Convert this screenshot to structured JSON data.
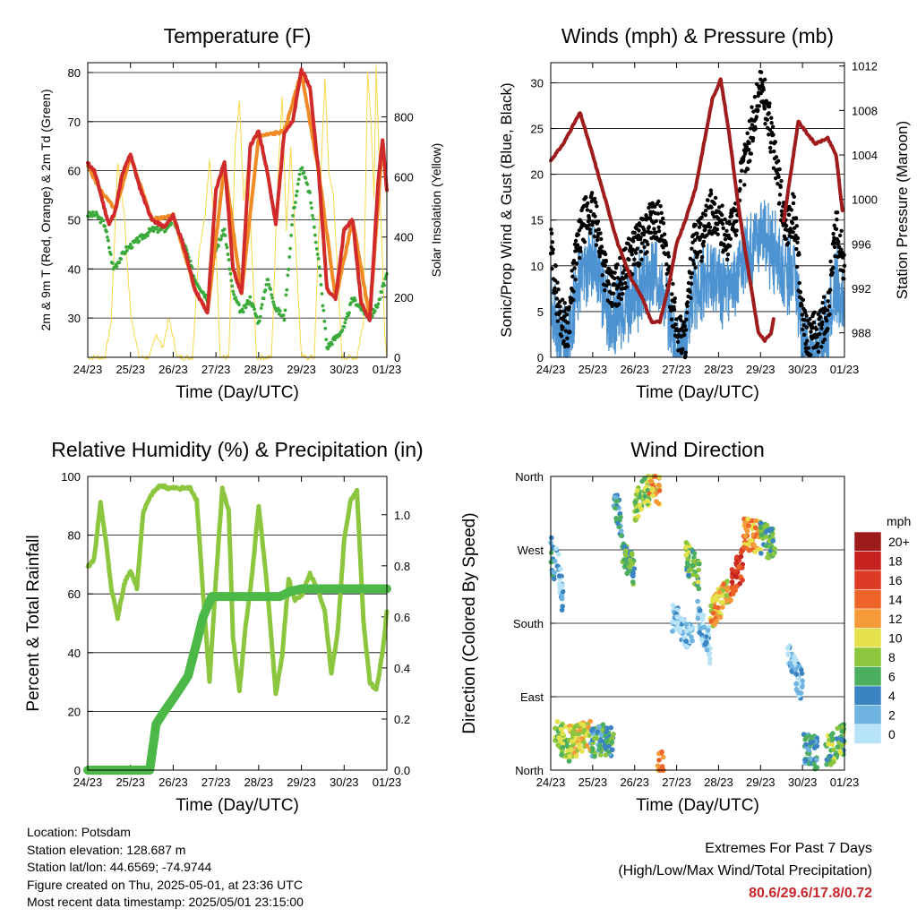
{
  "station": {
    "location": "Location: Potsdam",
    "elevation": "Station elevation: 128.687 m",
    "latlon": "Station lat/lon: 44.6569; -74.9744",
    "created": "Figure created on Thu, 2025-05-01, at 23:36 UTC",
    "recent": "Most recent data timestamp: 2025/05/01 23:15:00"
  },
  "extremes": {
    "title": "Extremes For Past 7 Days",
    "subtitle": "(High/Low/Max Wind/Total Precipitation)",
    "values": "80.6/29.6/17.8/0.72"
  },
  "colors": {
    "temp": "#d02a2a",
    "temp9m": "#f08a24",
    "dewpoint": "#3aaa3a",
    "solar": "#f5d94a",
    "wind": "#4d93d1",
    "gust": "#000000",
    "pressure": "#a01c1c",
    "rh": "#8cc63f",
    "precip": "#4cb847"
  },
  "chart_data": [
    {
      "type": "line",
      "title": "Temperature (F)",
      "xlabel": "Time (Day/UTC)",
      "ylabel": "2m & 9m T (Red, Orange) & 2m Td (Green)",
      "ylabel_right": "Solar Insolation (Yellow)",
      "x_ticks": [
        "24/23",
        "25/23",
        "26/23",
        "27/23",
        "28/23",
        "29/23",
        "30/23",
        "01/23"
      ],
      "xlim": [
        0,
        7
      ],
      "ylim": [
        22,
        82
      ],
      "y_ticks": [
        30,
        40,
        50,
        60,
        70,
        80
      ],
      "ylim_right": [
        0,
        980
      ],
      "y_ticks_right": [
        0,
        200,
        400,
        600,
        800
      ],
      "grid": "horizontal",
      "series": [
        {
          "name": "2m T",
          "x": [
            0,
            0.15,
            0.25,
            0.4,
            0.5,
            0.65,
            0.8,
            1.0,
            1.2,
            1.5,
            1.8,
            2.0,
            2.3,
            2.5,
            2.8,
            3.0,
            3.2,
            3.4,
            3.6,
            3.8,
            4.0,
            4.2,
            4.4,
            4.6,
            4.8,
            5.0,
            5.2,
            5.4,
            5.6,
            5.8,
            6.0,
            6.2,
            6.4,
            6.6,
            6.8,
            6.9,
            7.0
          ],
          "values": [
            61.5,
            60,
            57,
            52,
            49,
            52,
            59,
            63.5,
            57,
            50,
            48.5,
            51,
            43,
            36,
            31,
            56,
            62,
            40,
            35,
            65,
            68,
            60,
            49,
            68,
            70,
            80.6,
            77,
            60,
            36,
            34,
            48,
            50,
            33,
            29.6,
            58,
            66.5,
            56
          ]
        },
        {
          "name": "9m T",
          "x": [
            0,
            0.3,
            0.65,
            1.0,
            1.5,
            2.0,
            2.5,
            2.8,
            3.2,
            3.6,
            4.0,
            4.6,
            5.0,
            5.4,
            5.8,
            6.2,
            6.6,
            6.9,
            7.0
          ],
          "values": [
            61,
            56,
            52,
            63,
            50,
            51,
            36,
            31,
            61,
            35,
            67,
            68,
            80,
            60,
            34,
            50,
            30,
            66,
            56
          ]
        },
        {
          "name": "2m Td",
          "x": [
            0,
            0.2,
            0.4,
            0.6,
            0.9,
            1.2,
            1.5,
            1.8,
            2.0,
            2.3,
            2.5,
            2.8,
            3.0,
            3.2,
            3.4,
            3.6,
            3.8,
            4.0,
            4.2,
            4.4,
            4.6,
            4.8,
            5.0,
            5.2,
            5.4,
            5.6,
            5.8,
            6.0,
            6.2,
            6.4,
            6.6,
            6.8,
            7.0
          ],
          "values": [
            51,
            51,
            49,
            40,
            44,
            46,
            48,
            48,
            50,
            44,
            38,
            34,
            44,
            48,
            35,
            31,
            34,
            29,
            38,
            32,
            30,
            51,
            61,
            55,
            42,
            24,
            26,
            28,
            34,
            32,
            30,
            33,
            39
          ]
        },
        {
          "name": "Solar Insolation",
          "x": [
            0,
            0.4,
            0.55,
            0.7,
            0.85,
            1.0,
            1.2,
            1.45,
            1.6,
            1.75,
            1.9,
            2.1,
            2.45,
            2.6,
            2.75,
            2.85,
            3.0,
            3.1,
            3.3,
            3.45,
            3.55,
            3.65,
            3.75,
            3.95,
            4.3,
            4.45,
            4.55,
            4.65,
            4.75,
            5.0,
            5.3,
            5.45,
            5.55,
            5.65,
            5.75,
            5.95,
            6.3,
            6.45,
            6.55,
            6.62,
            6.7,
            6.75,
            6.95,
            7.0
          ],
          "values": [
            0,
            0,
            120,
            650,
            480,
            150,
            0,
            0,
            80,
            30,
            130,
            0,
            0,
            350,
            480,
            650,
            380,
            0,
            0,
            700,
            850,
            520,
            640,
            0,
            0,
            600,
            870,
            420,
            700,
            0,
            0,
            580,
            930,
            600,
            540,
            0,
            0,
            120,
            960,
            800,
            540,
            960,
            80,
            0
          ]
        }
      ]
    },
    {
      "type": "scatter",
      "title": "Winds (mph) & Pressure (mb)",
      "xlabel": "Time (Day/UTC)",
      "ylabel": "Sonic/Prop Wind & Gust (Blue, Black)",
      "ylabel_right": "Station Pressure (Maroon)",
      "x_ticks": [
        "24/23",
        "25/23",
        "26/23",
        "27/23",
        "28/23",
        "29/23",
        "30/23",
        "01/23"
      ],
      "xlim": [
        0,
        7
      ],
      "ylim": [
        0,
        32.2
      ],
      "y_ticks": [
        0,
        5,
        10,
        15,
        20,
        25,
        30
      ],
      "ylim_right": [
        985.8,
        1012.3
      ],
      "y_ticks_right": [
        988,
        992,
        996,
        1000,
        1004,
        1008,
        1012
      ],
      "grid": "horizontal",
      "series": [
        {
          "name": "Wind",
          "x": [
            0,
            0.2,
            0.4,
            0.6,
            0.8,
            1.0,
            1.2,
            1.4,
            1.6,
            1.8,
            2.0,
            2.2,
            2.4,
            2.6,
            2.8,
            3.0,
            3.2,
            3.4,
            3.6,
            3.8,
            4.0,
            4.2,
            4.4,
            4.6,
            4.8,
            5.0,
            5.2,
            5.4,
            5.6,
            5.8,
            6.0,
            6.2,
            6.4,
            6.6,
            6.8,
            7.0
          ],
          "values": [
            6,
            2,
            1,
            7,
            10,
            11,
            8,
            4,
            5,
            6,
            7,
            8,
            9,
            9,
            5,
            1,
            1,
            7,
            8,
            9,
            8,
            7,
            8,
            11,
            12,
            14,
            12,
            11,
            9,
            10,
            2,
            1,
            2,
            3,
            8,
            5
          ]
        },
        {
          "name": "Gust",
          "x": [
            0,
            0.2,
            0.4,
            0.6,
            0.8,
            1.0,
            1.2,
            1.4,
            1.6,
            1.8,
            2.0,
            2.2,
            2.4,
            2.6,
            2.8,
            3.0,
            3.2,
            3.4,
            3.6,
            3.8,
            4.0,
            4.2,
            4.4,
            4.6,
            4.8,
            5.0,
            5.2,
            5.4,
            5.6,
            5.8,
            6.0,
            6.2,
            6.4,
            6.6,
            6.8,
            7.0
          ],
          "values": [
            12,
            5,
            3,
            11,
            15,
            16,
            12,
            7,
            8,
            10,
            12,
            13,
            15,
            15,
            9,
            3,
            2,
            12,
            13,
            16,
            15,
            13,
            15,
            21,
            25,
            30,
            26,
            20,
            14,
            16,
            4,
            2,
            3,
            5,
            14,
            10
          ]
        },
        {
          "name": "Station Pressure",
          "x": [
            0,
            0.3,
            0.55,
            0.7,
            1.0,
            1.3,
            1.6,
            1.9,
            2.2,
            2.4,
            2.6,
            2.8,
            3.0,
            3.2,
            3.45,
            3.65,
            3.85,
            4.05,
            4.25,
            4.45,
            4.65,
            4.8,
            4.95,
            5.1,
            5.25,
            5.35,
            5.55,
            5.9,
            6.3,
            6.6,
            6.8,
            6.95
          ],
          "values": [
            1003.5,
            1005,
            1006.8,
            1007.8,
            1004,
            1000,
            996,
            993,
            991,
            989,
            989,
            992,
            996,
            998,
            1001,
            1005,
            1009,
            1010.8,
            1006,
            1000,
            995,
            991.5,
            988,
            987.3,
            988,
            990,
            998,
            1007,
            1005,
            1005.5,
            1004,
            999
          ]
        }
      ]
    },
    {
      "type": "line",
      "title": "Relative Humidity (%) & Precipitation (in)",
      "xlabel": "Time (Day/UTC)",
      "ylabel": "Percent & Total Rainfall",
      "x_ticks": [
        "24/23",
        "25/23",
        "26/23",
        "27/23",
        "28/23",
        "29/23",
        "30/23",
        "01/23"
      ],
      "xlim": [
        0,
        7
      ],
      "ylim": [
        0,
        100
      ],
      "y_ticks": [
        0,
        20,
        40,
        60,
        80,
        100
      ],
      "ylim_right": [
        0,
        1.15
      ],
      "y_ticks_right": [
        0.0,
        0.2,
        0.4,
        0.6,
        0.8,
        1.0
      ],
      "grid": "horizontal",
      "series": [
        {
          "name": "Relative Humidity",
          "x": [
            0,
            0.15,
            0.3,
            0.45,
            0.55,
            0.7,
            0.85,
            1.0,
            1.15,
            1.3,
            1.5,
            1.7,
            1.9,
            2.0,
            2.2,
            2.4,
            2.55,
            2.7,
            2.85,
            3.0,
            3.15,
            3.3,
            3.4,
            3.55,
            3.7,
            3.85,
            4.0,
            4.2,
            4.4,
            4.55,
            4.7,
            4.85,
            5.0,
            5.2,
            5.4,
            5.55,
            5.7,
            5.85,
            6.0,
            6.15,
            6.3,
            6.45,
            6.6,
            6.75,
            6.9,
            7.0
          ],
          "values": [
            69,
            72,
            91,
            75,
            62,
            52,
            63,
            68,
            62,
            88,
            94,
            97,
            96,
            96,
            96,
            96,
            92,
            60,
            30,
            65,
            96,
            88,
            45,
            27,
            50,
            67,
            90,
            62,
            26,
            39,
            65,
            58,
            59,
            67,
            61,
            54,
            33,
            47,
            78,
            92,
            95,
            51,
            30,
            27,
            40,
            54
          ]
        },
        {
          "name": "Precipitation",
          "x": [
            0,
            1.45,
            1.55,
            1.6,
            1.75,
            2.0,
            2.2,
            2.35,
            2.55,
            2.7,
            2.9,
            4.5,
            4.75,
            5.0,
            7.0
          ],
          "values": [
            0,
            0,
            0.12,
            0.18,
            0.22,
            0.28,
            0.33,
            0.37,
            0.5,
            0.6,
            0.68,
            0.68,
            0.7,
            0.71,
            0.71
          ]
        }
      ]
    },
    {
      "type": "scatter",
      "title": "Wind Direction",
      "xlabel": "Time (Day/UTC)",
      "ylabel": "Direction (Colored By Speed)",
      "x_ticks": [
        "24/23",
        "25/23",
        "26/23",
        "27/23",
        "28/23",
        "29/23",
        "30/23",
        "01/23"
      ],
      "xlim": [
        0,
        7
      ],
      "ylim": [
        0,
        360
      ],
      "y_tick_labels": [
        "North",
        "East",
        "South",
        "West",
        "North"
      ],
      "y_tick_values": [
        0,
        90,
        180,
        270,
        360
      ],
      "grid": "horizontal",
      "legend_title": "mph",
      "legend_labels": [
        "20+",
        "18",
        "16",
        "14",
        "12",
        "10",
        "8",
        "6",
        "4",
        "2",
        "0"
      ],
      "legend_colors": [
        "#9e1b1b",
        "#c5221f",
        "#dd3b26",
        "#ee6428",
        "#f59a38",
        "#e4e14c",
        "#8cc63f",
        "#4caf60",
        "#3a84c2",
        "#6fb3e0",
        "#b7e3f7"
      ],
      "clusters": [
        {
          "x0": 0.0,
          "x1": 0.12,
          "dir0": 270,
          "dir1": 240,
          "speed": 4
        },
        {
          "x0": 0.12,
          "x1": 0.3,
          "dir0": 280,
          "dir1": 200,
          "speed": 2
        },
        {
          "x0": 0.1,
          "x1": 0.45,
          "dir0": 45,
          "dir1": 30,
          "speed": 8
        },
        {
          "x0": 0.45,
          "x1": 0.95,
          "dir0": 35,
          "dir1": 40,
          "speed": 10
        },
        {
          "x0": 0.95,
          "x1": 1.5,
          "dir0": 35,
          "dir1": 38,
          "speed": 5
        },
        {
          "x0": 1.5,
          "x1": 1.7,
          "dir0": 338,
          "dir1": 300,
          "speed": 4
        },
        {
          "x0": 1.7,
          "x1": 2.0,
          "dir0": 270,
          "dir1": 240,
          "speed": 6
        },
        {
          "x0": 2.0,
          "x1": 2.35,
          "dir0": 325,
          "dir1": 345,
          "speed": 8
        },
        {
          "x0": 2.35,
          "x1": 2.6,
          "dir0": 352,
          "dir1": 340,
          "speed": 11
        },
        {
          "x0": 2.55,
          "x1": 2.7,
          "dir0": 5,
          "dir1": 2,
          "speed": 12
        },
        {
          "x0": 2.9,
          "x1": 3.4,
          "dir0": 185,
          "dir1": 160,
          "speed": 1
        },
        {
          "x0": 3.2,
          "x1": 3.55,
          "dir0": 262,
          "dir1": 240,
          "speed": 7
        },
        {
          "x0": 3.5,
          "x1": 3.8,
          "dir0": 190,
          "dir1": 150,
          "speed": 1
        },
        {
          "x0": 3.8,
          "x1": 4.3,
          "dir0": 190,
          "dir1": 225,
          "speed": 11
        },
        {
          "x0": 4.3,
          "x1": 4.6,
          "dir0": 230,
          "dir1": 255,
          "speed": 16
        },
        {
          "x0": 4.6,
          "x1": 5.0,
          "dir0": 290,
          "dir1": 285,
          "speed": 12
        },
        {
          "x0": 5.0,
          "x1": 5.35,
          "dir0": 285,
          "dir1": 275,
          "speed": 6
        },
        {
          "x0": 5.65,
          "x1": 6.0,
          "dir0": 140,
          "dir1": 100,
          "speed": 1
        },
        {
          "x0": 6.0,
          "x1": 6.35,
          "dir0": 30,
          "dir1": 20,
          "speed": 4
        },
        {
          "x0": 6.55,
          "x1": 7.0,
          "dir0": 20,
          "dir1": 40,
          "speed": 7
        }
      ]
    }
  ]
}
